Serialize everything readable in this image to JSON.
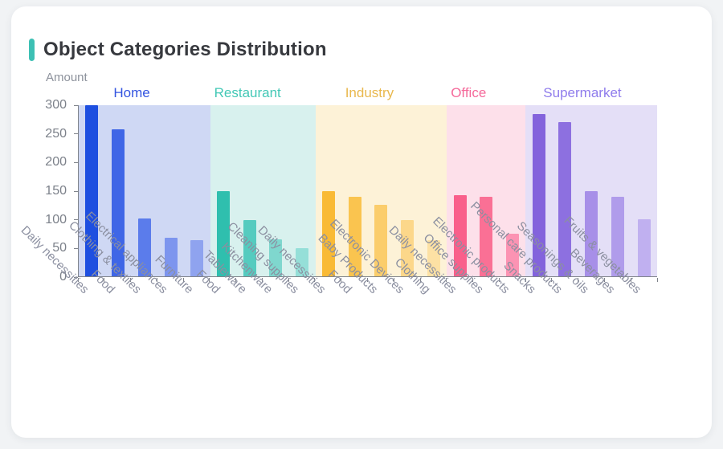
{
  "accent_color": "#3dc0b4",
  "card": {
    "title": "Object Categories Distribution"
  },
  "chart_data": {
    "type": "bar",
    "title": "Object Categories Distribution",
    "xlabel": "",
    "ylabel": "Amount",
    "ylim": [
      0,
      300
    ],
    "yticks": [
      0,
      50,
      100,
      150,
      200,
      250,
      300
    ],
    "grid": false,
    "legend_position": "none",
    "axis_color": "#7f838a",
    "tick_label_color": "#7c818a",
    "x_label_color": "#8b8fa0",
    "groups": [
      {
        "name": "Home",
        "name_color": "#3354e0",
        "panel_color": "#cfd8f4",
        "bars": [
          {
            "label": "Daily necessities",
            "value": 300,
            "color": "#1e4fe0"
          },
          {
            "label": "Food",
            "value": 258,
            "color": "#3f66e6"
          },
          {
            "label": "Clothing & textiles",
            "value": 102,
            "color": "#5b7ceb"
          },
          {
            "label": "Electrical appliances",
            "value": 68,
            "color": "#7d95ee"
          },
          {
            "label": "Furniture",
            "value": 64,
            "color": "#8fa3ef"
          }
        ]
      },
      {
        "name": "Restaurant",
        "name_color": "#43c8b6",
        "panel_color": "#d8f1ee",
        "bars": [
          {
            "label": "Food",
            "value": 150,
            "color": "#2fbfae"
          },
          {
            "label": "Tableware",
            "value": 98,
            "color": "#55cbbf"
          },
          {
            "label": "Kitchenware",
            "value": 65,
            "color": "#7fd7ce"
          },
          {
            "label": "Cleaning supplies",
            "value": 50,
            "color": "#95dfd8"
          }
        ]
      },
      {
        "name": "Industry",
        "name_color": "#e9b84e",
        "panel_color": "#fdf2d7",
        "bars": [
          {
            "label": "Daily necessities",
            "value": 150,
            "color": "#f9ba35"
          },
          {
            "label": "Food",
            "value": 139,
            "color": "#fac44f"
          },
          {
            "label": "Baby Products",
            "value": 125,
            "color": "#fbcd6b"
          },
          {
            "label": "Electronic Devices",
            "value": 99,
            "color": "#fcd78a"
          },
          {
            "label": "Clothing",
            "value": 63,
            "color": "#fde1a4"
          }
        ]
      },
      {
        "name": "Office",
        "name_color": "#f5699a",
        "panel_color": "#fde0ea",
        "bars": [
          {
            "label": "Daily necessities",
            "value": 142,
            "color": "#f95f8b"
          },
          {
            "label": "Office supplies",
            "value": 139,
            "color": "#fa7095"
          },
          {
            "label": "Electronic products",
            "value": 75,
            "color": "#fc93b3"
          }
        ]
      },
      {
        "name": "Supermarket",
        "name_color": "#8f7cec",
        "panel_color": "#e4dff7",
        "bars": [
          {
            "label": "Snacks",
            "value": 285,
            "color": "#8363dc"
          },
          {
            "label": "Personal care products",
            "value": 271,
            "color": "#8d70e0"
          },
          {
            "label": "Seasonings & oils",
            "value": 149,
            "color": "#a78fe8"
          },
          {
            "label": "Beverages",
            "value": 140,
            "color": "#b09ceb"
          },
          {
            "label": "Fruits & vegetables",
            "value": 100,
            "color": "#c0b0f0"
          }
        ]
      }
    ]
  }
}
